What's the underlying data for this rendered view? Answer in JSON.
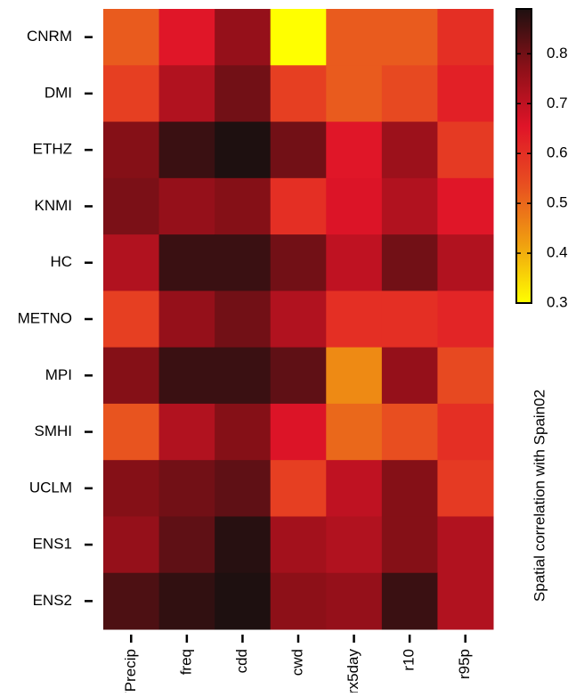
{
  "chart_data": {
    "type": "heatmap",
    "categories": [
      "TPrecip",
      "freq",
      "cdd",
      "cwd",
      "rx5day",
      "r10",
      "r95p"
    ],
    "y_categories": [
      "CNRM",
      "DMI",
      "ETHZ",
      "KNMI",
      "HC",
      "METNO",
      "MPI",
      "SMHI",
      "UCLM",
      "ENS1",
      "ENS2"
    ],
    "values": [
      [
        0.52,
        0.65,
        0.76,
        0.3,
        0.52,
        0.52,
        0.6
      ],
      [
        0.57,
        0.72,
        0.8,
        0.57,
        0.52,
        0.55,
        0.63
      ],
      [
        0.78,
        0.86,
        0.89,
        0.8,
        0.65,
        0.75,
        0.58
      ],
      [
        0.79,
        0.76,
        0.78,
        0.6,
        0.66,
        0.72,
        0.65
      ],
      [
        0.72,
        0.86,
        0.86,
        0.8,
        0.7,
        0.8,
        0.72
      ],
      [
        0.57,
        0.76,
        0.8,
        0.72,
        0.6,
        0.6,
        0.62
      ],
      [
        0.78,
        0.86,
        0.86,
        0.82,
        0.45,
        0.76,
        0.55
      ],
      [
        0.53,
        0.72,
        0.78,
        0.66,
        0.5,
        0.54,
        0.6
      ],
      [
        0.78,
        0.8,
        0.82,
        0.57,
        0.7,
        0.78,
        0.58
      ],
      [
        0.76,
        0.82,
        0.88,
        0.74,
        0.72,
        0.78,
        0.72
      ],
      [
        0.84,
        0.87,
        0.89,
        0.77,
        0.76,
        0.86,
        0.72
      ]
    ],
    "colormap": [
      "#ffff00",
      "#f0a010",
      "#e85020",
      "#e01428",
      "#8c1018",
      "#1e1010"
    ],
    "clim": [
      0.3,
      0.89
    ],
    "cticks": [
      0.3,
      0.4,
      0.5,
      0.6,
      0.7,
      0.8
    ],
    "colorbar_label": "Spatial correlation with Spain02"
  }
}
